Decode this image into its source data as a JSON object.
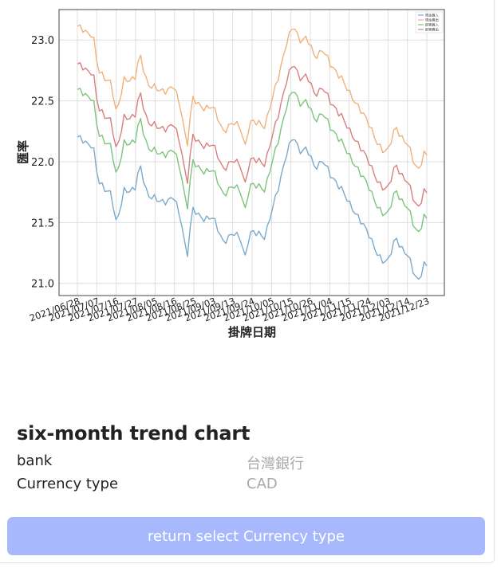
{
  "chart_data": {
    "type": "line",
    "title": "",
    "xlabel": "掛牌日期",
    "ylabel": "匯率",
    "ylim": [
      20.9,
      23.25
    ],
    "yticks": [
      "21.0",
      "21.5",
      "22.0",
      "22.5",
      "23.0"
    ],
    "xticks": [
      "2021/06/28",
      "2021/07/07",
      "2021/07/16",
      "2021/07/27",
      "2021/08/05",
      "2021/08/16",
      "2021/08/25",
      "2021/09/03",
      "2021/09/13",
      "2021/09/24",
      "2021/10/05",
      "2021/10/15",
      "2021/10/26",
      "2021/11/04",
      "2021/11/15",
      "2021/11/24",
      "2021/12/03",
      "2021/12/14",
      "2021/12/23"
    ],
    "grid": true,
    "legend_position": "top-right",
    "x_count": 128,
    "series": [
      {
        "name": "現金買入",
        "color": "#7aaacc"
      },
      {
        "name": "現金賣出",
        "color": "#f0b27a"
      },
      {
        "name": "即期買入",
        "color": "#7cc47c"
      },
      {
        "name": "即期賣出",
        "color": "#d97e7e"
      }
    ],
    "anchors": [
      [
        0,
        22.19
      ],
      [
        6,
        22.14
      ],
      [
        8,
        21.82
      ],
      [
        13,
        21.75
      ],
      [
        15,
        21.46
      ],
      [
        18,
        21.78
      ],
      [
        22,
        21.76
      ],
      [
        24,
        21.97
      ],
      [
        27,
        21.73
      ],
      [
        31,
        21.67
      ],
      [
        37,
        21.7
      ],
      [
        40,
        21.5
      ],
      [
        42,
        21.21
      ],
      [
        44,
        21.6
      ],
      [
        47,
        21.55
      ],
      [
        52,
        21.53
      ],
      [
        56,
        21.35
      ],
      [
        60,
        21.4
      ],
      [
        63,
        21.38
      ],
      [
        64,
        21.18
      ],
      [
        66,
        21.4
      ],
      [
        70,
        21.42
      ],
      [
        72,
        21.38
      ],
      [
        75,
        21.62
      ],
      [
        80,
        22.05
      ],
      [
        83,
        22.21
      ],
      [
        85,
        22.1
      ],
      [
        88,
        22.1
      ],
      [
        91,
        21.95
      ],
      [
        94,
        22.02
      ],
      [
        97,
        21.88
      ],
      [
        101,
        21.8
      ],
      [
        104,
        21.65
      ],
      [
        108,
        21.55
      ],
      [
        111,
        21.42
      ],
      [
        114,
        21.3
      ],
      [
        117,
        21.18
      ],
      [
        119,
        21.16
      ],
      [
        122,
        21.4
      ],
      [
        125,
        21.25
      ],
      [
        127,
        21.22
      ],
      [
        129,
        21.1
      ],
      [
        131,
        21.02
      ],
      [
        133,
        21.15
      ],
      [
        134,
        21.13
      ]
    ],
    "offsets_from_first_series": [
      0,
      0.91,
      0.39,
      0.6
    ]
  },
  "info": {
    "title": "six-month trend chart",
    "bank_label": "bank",
    "bank_value": "台灣銀行",
    "currency_label": "Currency type",
    "currency_value": "CAD"
  },
  "actions": {
    "return_label": "return select Currency type"
  }
}
